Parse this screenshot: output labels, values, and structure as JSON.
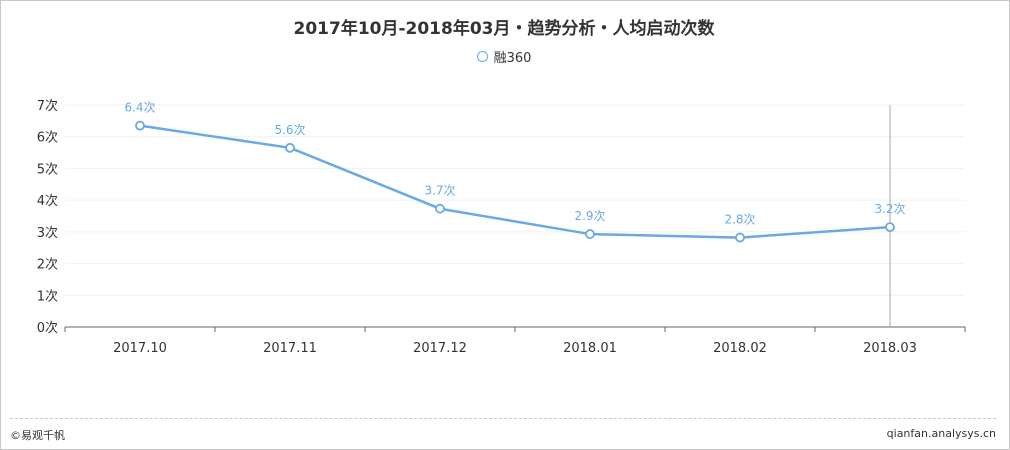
{
  "title": "2017年10月-2018年03月・趋势分析・人均启动次数",
  "legend": {
    "label": "融360"
  },
  "colors": {
    "series": "#6aa8e6",
    "axis": "#333333",
    "grid": "#f0f0f0",
    "cursor": "#aaaaaa"
  },
  "footer": {
    "left": "©易观千帆",
    "right": "qianfan.analysys.cn"
  },
  "chart_data": {
    "type": "line",
    "categories": [
      "2017.10",
      "2017.11",
      "2017.12",
      "2018.01",
      "2018.02",
      "2018.03"
    ],
    "series": [
      {
        "name": "融360",
        "values": [
          6.35,
          5.65,
          3.73,
          2.93,
          2.82,
          3.15
        ],
        "labels": [
          "6.4次",
          "5.6次",
          "3.7次",
          "2.9次",
          "2.8次",
          "3.2次"
        ]
      }
    ],
    "y_ticks": [
      "0次",
      "1次",
      "2次",
      "3次",
      "4次",
      "5次",
      "6次",
      "7次"
    ],
    "ylim": [
      0,
      7
    ],
    "grid": true,
    "legend_position": "top-center"
  }
}
